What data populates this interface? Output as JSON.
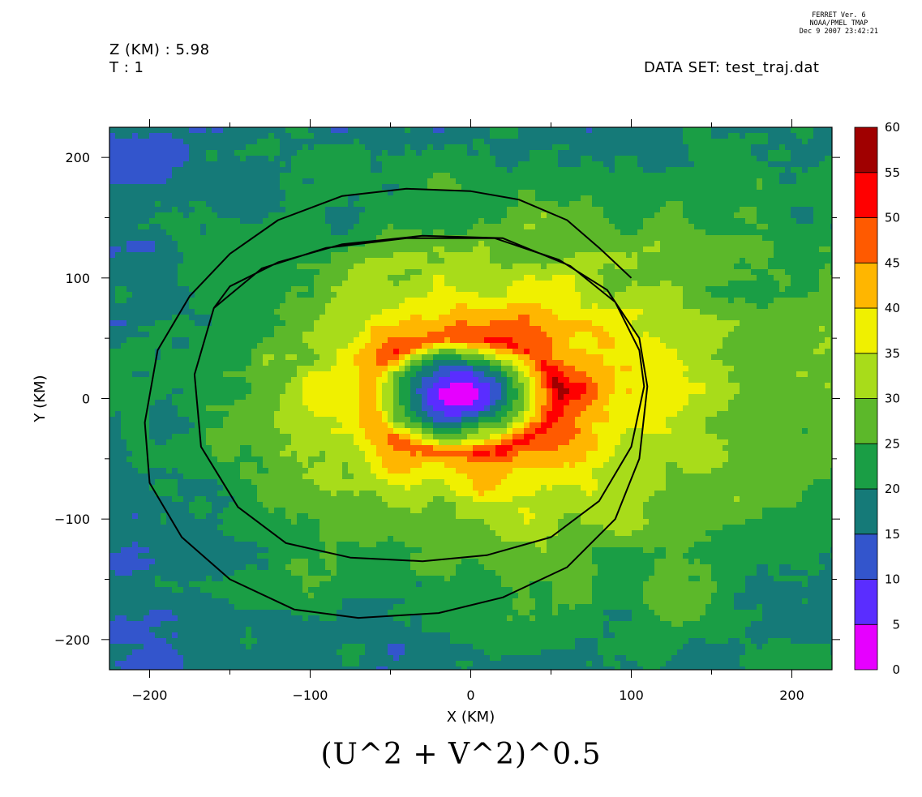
{
  "header": {
    "z_label": "Z (KM) : 5.98",
    "t_label": "T : 1",
    "dataset_label": "DATA SET: test_traj.dat",
    "stamp_line1": "FERRET Ver. 6",
    "stamp_line2": "NOAA/PMEL TMAP",
    "stamp_line3": "Dec  9 2007 23:42:21"
  },
  "chart_data": {
    "type": "heatmap",
    "title": "(U^2 + V^2)^0.5",
    "xlabel": "X (KM)",
    "ylabel": "Y (KM)",
    "xlim": [
      -225,
      225
    ],
    "ylim": [
      -225,
      225
    ],
    "x_ticks": [
      -200,
      -100,
      0,
      100,
      200
    ],
    "x_tick_labels": [
      "−200",
      "−100",
      "0",
      "100",
      "200"
    ],
    "y_ticks": [
      -200,
      -100,
      0,
      100,
      200
    ],
    "y_tick_labels": [
      "−200",
      "−100",
      "0",
      "100",
      "200"
    ],
    "colorbar": {
      "levels": [
        0,
        5,
        10,
        15,
        20,
        25,
        30,
        35,
        40,
        45,
        50,
        55,
        60
      ],
      "labels": [
        "0",
        "5",
        "10",
        "15",
        "20",
        "25",
        "30",
        "35",
        "40",
        "45",
        "50",
        "55",
        "60"
      ],
      "colors": [
        "#e600ff",
        "#5a2dff",
        "#3355cc",
        "#157a78",
        "#1a9e45",
        "#5cb82a",
        "#a8dc1a",
        "#f0f000",
        "#ffb600",
        "#ff5a00",
        "#ff0000",
        "#a00000"
      ]
    },
    "field_description_regions": [
      {
        "value_range": [
          0,
          5
        ],
        "center": [
          -10,
          3
        ],
        "radius": [
          15,
          5
        ]
      },
      {
        "value_range": [
          5,
          10
        ],
        "center": [
          -5,
          3
        ],
        "radius": [
          35,
          17
        ]
      },
      {
        "value_range": [
          10,
          20
        ],
        "center": [
          -5,
          5
        ],
        "radius": [
          62,
          35
        ]
      }
    ],
    "trajectory": [
      [
        100,
        100
      ],
      [
        80,
        125
      ],
      [
        60,
        148
      ],
      [
        30,
        165
      ],
      [
        0,
        172
      ],
      [
        -40,
        174
      ],
      [
        -80,
        168
      ],
      [
        -120,
        148
      ],
      [
        -150,
        120
      ],
      [
        -175,
        85
      ],
      [
        -195,
        40
      ],
      [
        -203,
        -20
      ],
      [
        -200,
        -70
      ],
      [
        -180,
        -115
      ],
      [
        -150,
        -150
      ],
      [
        -110,
        -175
      ],
      [
        -70,
        -182
      ],
      [
        -20,
        -178
      ],
      [
        20,
        -165
      ],
      [
        60,
        -140
      ],
      [
        90,
        -100
      ],
      [
        105,
        -50
      ],
      [
        110,
        10
      ],
      [
        105,
        50
      ],
      [
        85,
        90
      ],
      [
        55,
        115
      ],
      [
        15,
        133
      ],
      [
        -40,
        133
      ],
      [
        -90,
        125
      ],
      [
        -130,
        108
      ],
      [
        -160,
        75
      ],
      [
        -172,
        20
      ],
      [
        -168,
        -40
      ],
      [
        -145,
        -90
      ],
      [
        -115,
        -120
      ],
      [
        -75,
        -132
      ],
      [
        -30,
        -135
      ],
      [
        10,
        -130
      ],
      [
        50,
        -115
      ],
      [
        80,
        -85
      ],
      [
        100,
        -40
      ],
      [
        108,
        10
      ],
      [
        105,
        40
      ],
      [
        90,
        80
      ],
      [
        62,
        110
      ],
      [
        20,
        133
      ],
      [
        -30,
        135
      ],
      [
        -80,
        128
      ],
      [
        -120,
        113
      ],
      [
        -150,
        93
      ],
      [
        -160,
        75
      ]
    ]
  }
}
